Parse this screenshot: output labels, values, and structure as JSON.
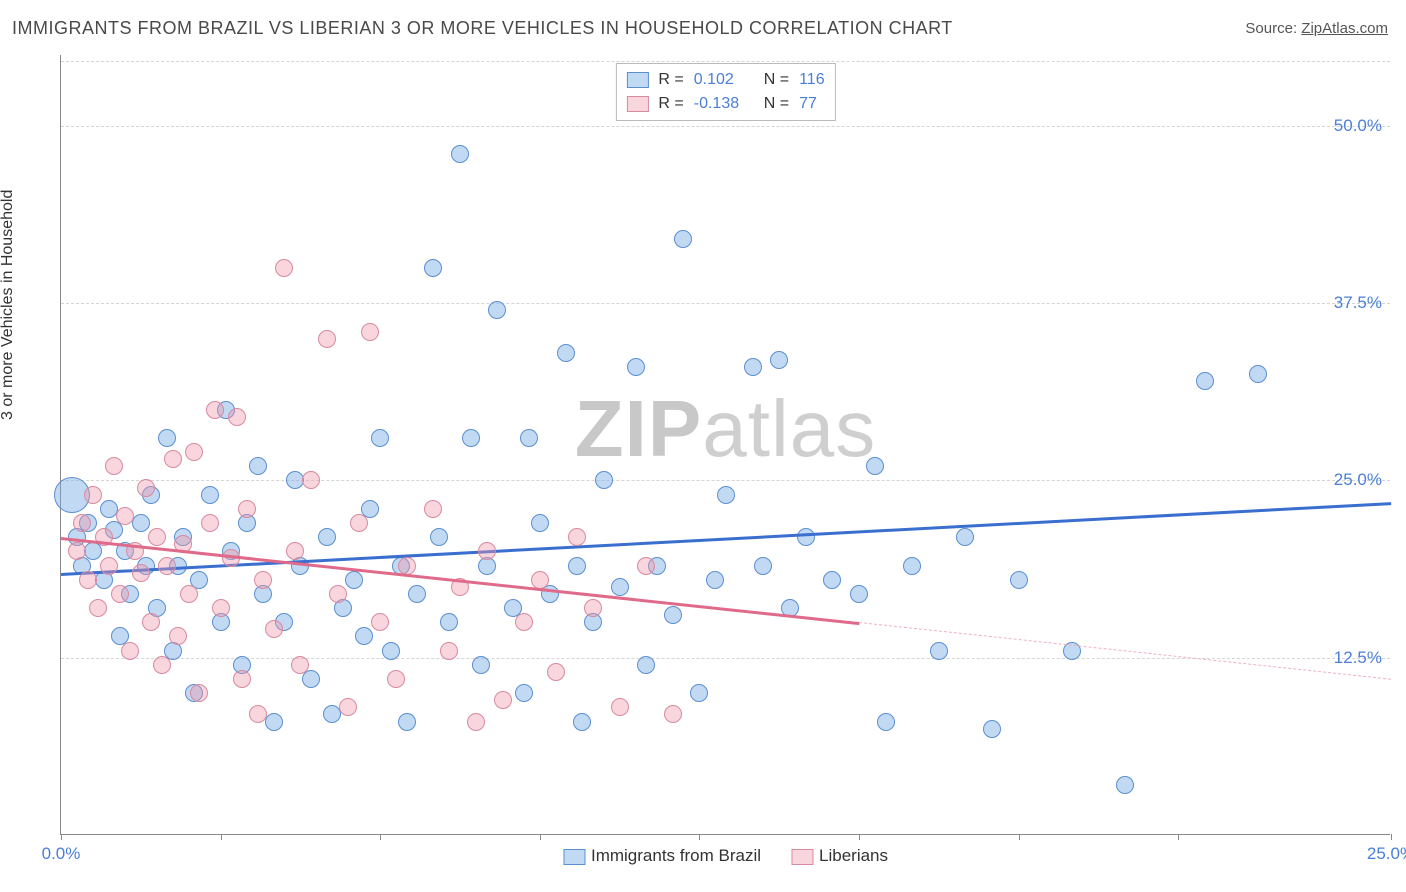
{
  "title": "IMMIGRANTS FROM BRAZIL VS LIBERIAN 3 OR MORE VEHICLES IN HOUSEHOLD CORRELATION CHART",
  "source_label": "Source:",
  "source_site": "ZipAtlas.com",
  "watermark_a": "ZIP",
  "watermark_b": "atlas",
  "ylabel": "3 or more Vehicles in Household",
  "chart": {
    "type": "scatter",
    "xlim": [
      0,
      25
    ],
    "ylim": [
      0,
      55
    ],
    "xtick_positions": [
      0,
      3,
      6,
      9,
      12,
      15,
      18,
      21,
      25
    ],
    "xtick_labels": {
      "0": "0.0%",
      "25": "25.0%"
    },
    "yticks": [
      12.5,
      25.0,
      37.5,
      50.0
    ],
    "ytick_labels": [
      "12.5%",
      "25.0%",
      "37.5%",
      "50.0%"
    ],
    "background_color": "#ffffff",
    "grid_color": "#d5d5d5",
    "axis_color": "#888888",
    "label_color": "#4a7fd8",
    "point_radius": 9,
    "point_radius_large": 18,
    "series": [
      {
        "name": "Immigrants from Brazil",
        "color_fill": "rgba(120,170,230,0.45)",
        "color_stroke": "#5a8fd0",
        "r_label": "R =",
        "r_value": "0.102",
        "n_label": "N =",
        "n_value": "116",
        "trend": {
          "x1": 0,
          "y1": 18.5,
          "x2": 25,
          "y2": 23.5,
          "color": "#3a6fd0"
        },
        "large_point": {
          "x": 0.2,
          "y": 24
        },
        "points": [
          [
            0.3,
            21
          ],
          [
            0.4,
            19
          ],
          [
            0.5,
            22
          ],
          [
            0.6,
            20
          ],
          [
            0.8,
            18
          ],
          [
            0.9,
            23
          ],
          [
            1.0,
            21.5
          ],
          [
            1.1,
            14
          ],
          [
            1.2,
            20
          ],
          [
            1.3,
            17
          ],
          [
            1.5,
            22
          ],
          [
            1.6,
            19
          ],
          [
            1.7,
            24
          ],
          [
            1.8,
            16
          ],
          [
            2.0,
            28
          ],
          [
            2.1,
            13
          ],
          [
            2.2,
            19
          ],
          [
            2.3,
            21
          ],
          [
            2.5,
            10
          ],
          [
            2.6,
            18
          ],
          [
            2.8,
            24
          ],
          [
            3.0,
            15
          ],
          [
            3.1,
            30
          ],
          [
            3.2,
            20
          ],
          [
            3.4,
            12
          ],
          [
            3.5,
            22
          ],
          [
            3.7,
            26
          ],
          [
            3.8,
            17
          ],
          [
            4.0,
            8
          ],
          [
            4.2,
            15
          ],
          [
            4.4,
            25
          ],
          [
            4.5,
            19
          ],
          [
            4.7,
            11
          ],
          [
            5.0,
            21
          ],
          [
            5.1,
            8.5
          ],
          [
            5.3,
            16
          ],
          [
            5.5,
            18
          ],
          [
            5.7,
            14
          ],
          [
            5.8,
            23
          ],
          [
            6.0,
            28
          ],
          [
            6.2,
            13
          ],
          [
            6.4,
            19
          ],
          [
            6.5,
            8
          ],
          [
            6.7,
            17
          ],
          [
            7.0,
            40
          ],
          [
            7.1,
            21
          ],
          [
            7.3,
            15
          ],
          [
            7.5,
            48
          ],
          [
            7.7,
            28
          ],
          [
            7.9,
            12
          ],
          [
            8.0,
            19
          ],
          [
            8.2,
            37
          ],
          [
            8.5,
            16
          ],
          [
            8.7,
            10
          ],
          [
            8.8,
            28
          ],
          [
            9.0,
            22
          ],
          [
            9.2,
            17
          ],
          [
            9.5,
            34
          ],
          [
            9.7,
            19
          ],
          [
            9.8,
            8
          ],
          [
            10.0,
            15
          ],
          [
            10.2,
            25
          ],
          [
            10.5,
            17.5
          ],
          [
            10.8,
            33
          ],
          [
            11.0,
            12
          ],
          [
            11.2,
            19
          ],
          [
            11.5,
            15.5
          ],
          [
            11.7,
            42
          ],
          [
            12.0,
            10
          ],
          [
            12.3,
            18
          ],
          [
            12.5,
            24
          ],
          [
            13.0,
            33
          ],
          [
            13.2,
            19
          ],
          [
            13.5,
            33.5
          ],
          [
            13.7,
            16
          ],
          [
            14.0,
            21
          ],
          [
            14.5,
            18
          ],
          [
            15.0,
            17
          ],
          [
            15.3,
            26
          ],
          [
            15.5,
            8
          ],
          [
            16.0,
            19
          ],
          [
            16.5,
            13
          ],
          [
            17.0,
            21
          ],
          [
            17.5,
            7.5
          ],
          [
            18.0,
            18
          ],
          [
            19.0,
            13
          ],
          [
            20.0,
            3.5
          ],
          [
            21.5,
            32
          ],
          [
            22.5,
            32.5
          ]
        ]
      },
      {
        "name": "Liberians",
        "color_fill": "rgba(240,150,170,0.40)",
        "color_stroke": "#d88aa0",
        "r_label": "R =",
        "r_value": "-0.138",
        "n_label": "N =",
        "n_value": "77",
        "trend": {
          "x1": 0,
          "y1": 21,
          "x2": 15,
          "y2": 15,
          "color": "#e06a8a"
        },
        "trend_dash": {
          "x1": 15,
          "y1": 15,
          "x2": 25,
          "y2": 11
        },
        "points": [
          [
            0.3,
            20
          ],
          [
            0.4,
            22
          ],
          [
            0.5,
            18
          ],
          [
            0.6,
            24
          ],
          [
            0.7,
            16
          ],
          [
            0.8,
            21
          ],
          [
            0.9,
            19
          ],
          [
            1.0,
            26
          ],
          [
            1.1,
            17
          ],
          [
            1.2,
            22.5
          ],
          [
            1.3,
            13
          ],
          [
            1.4,
            20
          ],
          [
            1.5,
            18.5
          ],
          [
            1.6,
            24.5
          ],
          [
            1.7,
            15
          ],
          [
            1.8,
            21
          ],
          [
            1.9,
            12
          ],
          [
            2.0,
            19
          ],
          [
            2.1,
            26.5
          ],
          [
            2.2,
            14
          ],
          [
            2.3,
            20.5
          ],
          [
            2.4,
            17
          ],
          [
            2.5,
            27
          ],
          [
            2.6,
            10
          ],
          [
            2.8,
            22
          ],
          [
            2.9,
            30
          ],
          [
            3.0,
            16
          ],
          [
            3.2,
            19.5
          ],
          [
            3.3,
            29.5
          ],
          [
            3.4,
            11
          ],
          [
            3.5,
            23
          ],
          [
            3.7,
            8.5
          ],
          [
            3.8,
            18
          ],
          [
            4.0,
            14.5
          ],
          [
            4.2,
            40
          ],
          [
            4.4,
            20
          ],
          [
            4.5,
            12
          ],
          [
            4.7,
            25
          ],
          [
            5.0,
            35
          ],
          [
            5.2,
            17
          ],
          [
            5.4,
            9
          ],
          [
            5.6,
            22
          ],
          [
            5.8,
            35.5
          ],
          [
            6.0,
            15
          ],
          [
            6.3,
            11
          ],
          [
            6.5,
            19
          ],
          [
            7.0,
            23
          ],
          [
            7.3,
            13
          ],
          [
            7.5,
            17.5
          ],
          [
            7.8,
            8
          ],
          [
            8.0,
            20
          ],
          [
            8.3,
            9.5
          ],
          [
            8.7,
            15
          ],
          [
            9.0,
            18
          ],
          [
            9.3,
            11.5
          ],
          [
            9.7,
            21
          ],
          [
            10.0,
            16
          ],
          [
            10.5,
            9
          ],
          [
            11.0,
            19
          ],
          [
            11.5,
            8.5
          ]
        ]
      }
    ]
  },
  "legend_bottom": [
    {
      "label": "Immigrants from Brazil",
      "class": "blue"
    },
    {
      "label": "Liberians",
      "class": "pink"
    }
  ]
}
